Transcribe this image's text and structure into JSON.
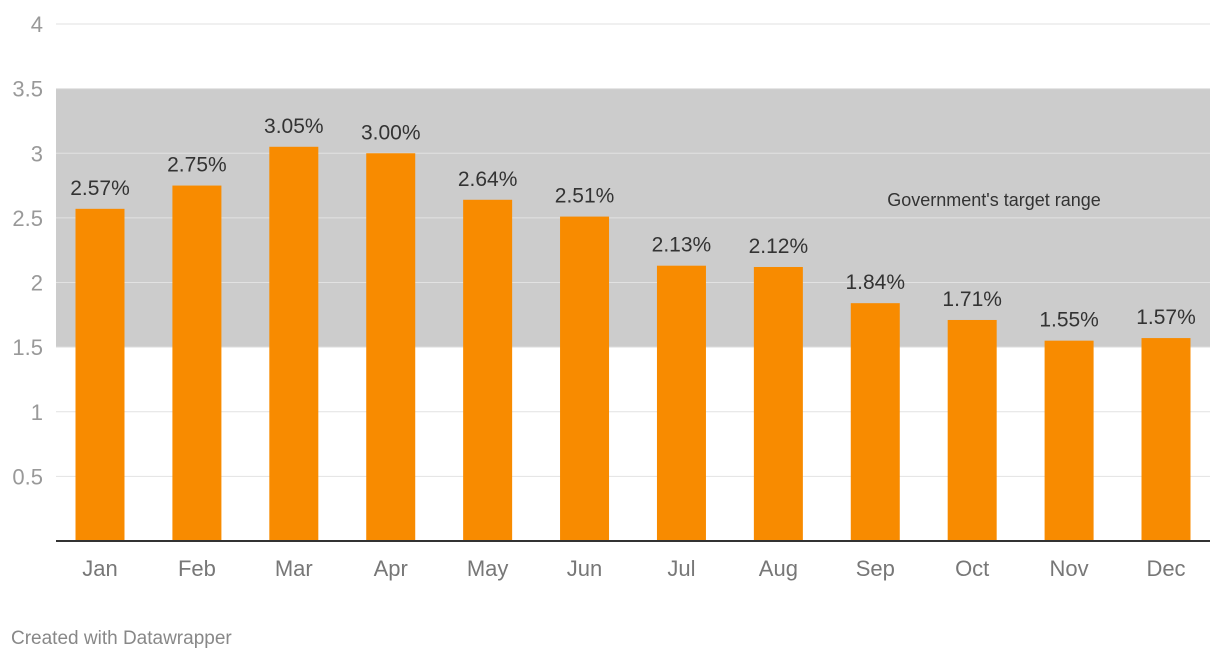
{
  "chart_data": {
    "type": "bar",
    "categories": [
      "Jan",
      "Feb",
      "Mar",
      "Apr",
      "May",
      "Jun",
      "Jul",
      "Aug",
      "Sep",
      "Oct",
      "Nov",
      "Dec"
    ],
    "values": [
      2.57,
      2.75,
      3.05,
      3.0,
      2.64,
      2.51,
      2.13,
      2.12,
      1.84,
      1.71,
      1.55,
      1.57
    ],
    "value_labels": [
      "2.57%",
      "2.75%",
      "3.05%",
      "3.00%",
      "2.64%",
      "2.51%",
      "2.13%",
      "2.12%",
      "1.84%",
      "1.71%",
      "1.55%",
      "1.57%"
    ],
    "y_ticks": [
      "0.5",
      "1",
      "1.5",
      "2",
      "2.5",
      "3",
      "3.5",
      "4"
    ],
    "ylim": [
      0,
      4
    ],
    "grid": true,
    "bar_color": "#f88b00",
    "band": {
      "from": 1.5,
      "to": 3.5,
      "label": "Government's target range",
      "color": "#cccccc"
    }
  },
  "footer": {
    "credit": "Created with Datawrapper"
  }
}
